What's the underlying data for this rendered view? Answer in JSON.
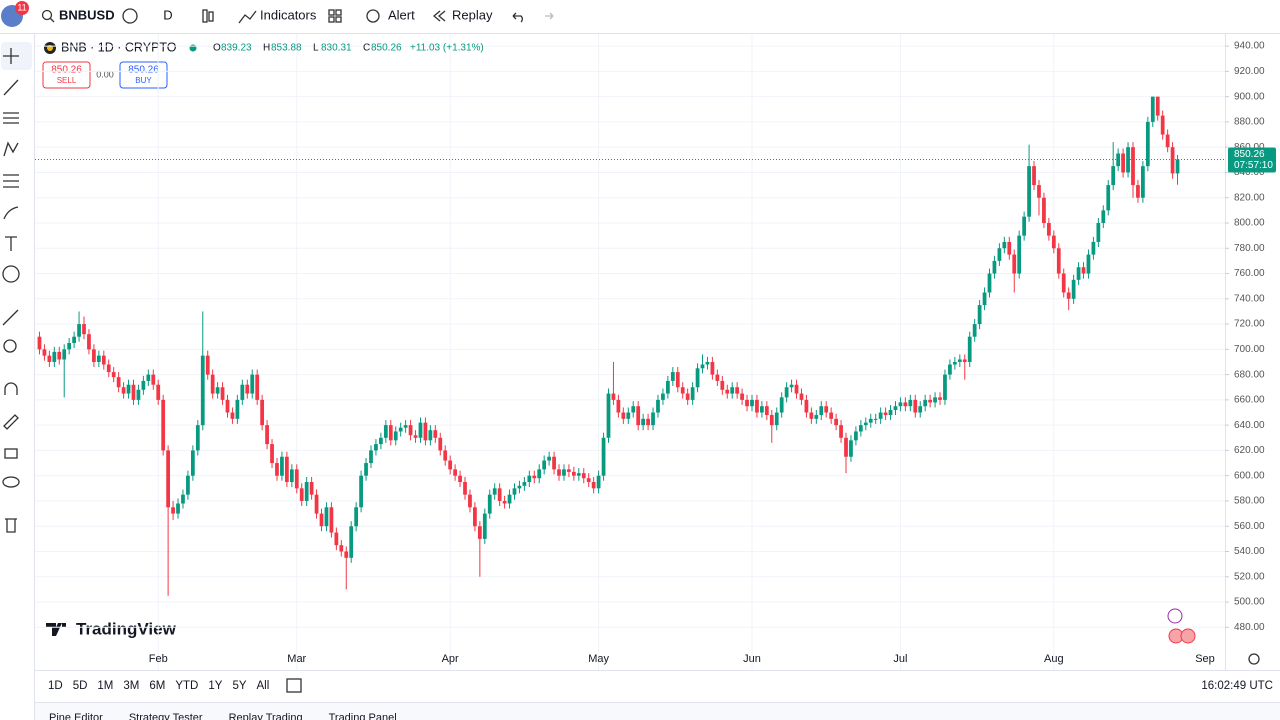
{
  "toolbar": {
    "badge": "11",
    "symbol": "BNBUSD",
    "interval": "D",
    "indicators": "Indicators",
    "alert": "Alert",
    "replay": "Replay"
  },
  "chart_data": {
    "type": "candlestick",
    "title": "BNB · 1D · CRYPTO",
    "ohlc_labels": [
      "O",
      "H",
      "L",
      "C"
    ],
    "change": "+11.03 (+1.31%)",
    "sell": "SELL",
    "buy": "BUY",
    "spread": "0.00",
    "countdown": "07:57:10",
    "watermark": "TradingView",
    "next_month_label": "Sep",
    "up_color": "#089981",
    "down_color": "#f23645",
    "grid": true,
    "ylim": [
      466,
      948
    ],
    "yticks": [
      {
        "value": 480,
        "label": "480.00"
      },
      {
        "value": 500,
        "label": "500.00"
      },
      {
        "value": 520,
        "label": "520.00"
      },
      {
        "value": 540,
        "label": "540.00"
      },
      {
        "value": 560,
        "label": "560.00"
      },
      {
        "value": 580,
        "label": "580.00"
      },
      {
        "value": 600,
        "label": "600.00"
      },
      {
        "value": 620,
        "label": "620.00"
      },
      {
        "value": 640,
        "label": "640.00"
      },
      {
        "value": 660,
        "label": "660.00"
      },
      {
        "value": 680,
        "label": "680.00"
      },
      {
        "value": 700,
        "label": "700.00"
      },
      {
        "value": 720,
        "label": "720.00"
      },
      {
        "value": 740,
        "label": "740.00"
      },
      {
        "value": 760,
        "label": "760.00"
      },
      {
        "value": 780,
        "label": "780.00"
      },
      {
        "value": 800,
        "label": "800.00"
      },
      {
        "value": 820,
        "label": "820.00"
      },
      {
        "value": 840,
        "label": "840.00"
      },
      {
        "value": 860,
        "label": "860.00"
      },
      {
        "value": 880,
        "label": "880.00"
      },
      {
        "value": 900,
        "label": "900.00"
      },
      {
        "value": 920,
        "label": "920.00"
      },
      {
        "value": 940,
        "label": "940.00"
      }
    ],
    "categories": [
      null,
      null,
      null,
      null,
      null,
      null,
      null,
      null,
      null,
      null,
      null,
      null,
      null,
      null,
      null,
      null,
      null,
      null,
      null,
      null,
      null,
      null,
      null,
      null,
      "Feb",
      null,
      null,
      null,
      null,
      null,
      null,
      null,
      null,
      null,
      null,
      null,
      null,
      null,
      null,
      null,
      null,
      null,
      null,
      null,
      null,
      null,
      null,
      null,
      null,
      null,
      null,
      null,
      "Mar",
      null,
      null,
      null,
      null,
      null,
      null,
      null,
      null,
      null,
      null,
      null,
      null,
      null,
      null,
      null,
      null,
      null,
      null,
      null,
      null,
      null,
      null,
      null,
      null,
      null,
      null,
      null,
      null,
      null,
      null,
      "Apr",
      null,
      null,
      null,
      null,
      null,
      null,
      null,
      null,
      null,
      null,
      null,
      null,
      null,
      null,
      null,
      null,
      null,
      null,
      null,
      null,
      null,
      null,
      null,
      null,
      null,
      null,
      null,
      null,
      null,
      "May",
      null,
      null,
      null,
      null,
      null,
      null,
      null,
      null,
      null,
      null,
      null,
      null,
      null,
      null,
      null,
      null,
      null,
      null,
      null,
      null,
      null,
      null,
      null,
      null,
      null,
      null,
      null,
      null,
      null,
      null,
      "Jun",
      null,
      null,
      null,
      null,
      null,
      null,
      null,
      null,
      null,
      null,
      null,
      null,
      null,
      null,
      null,
      null,
      null,
      null,
      null,
      null,
      null,
      null,
      null,
      null,
      null,
      null,
      null,
      null,
      null,
      "Jul",
      null,
      null,
      null,
      null,
      null,
      null,
      null,
      null,
      null,
      null,
      null,
      null,
      null,
      null,
      null,
      null,
      null,
      null,
      null,
      null,
      null,
      null,
      null,
      null,
      null,
      null,
      null,
      null,
      null,
      null,
      "Aug",
      null,
      null,
      null,
      null,
      null,
      null,
      null,
      null,
      null,
      null,
      null,
      null,
      null,
      null,
      null,
      null,
      null,
      null,
      null,
      null,
      null,
      null,
      null,
      null,
      null
    ],
    "open": [
      710,
      700,
      695,
      690,
      698,
      692,
      700,
      705,
      710,
      720,
      712,
      700,
      690,
      695,
      688,
      682,
      678,
      670,
      665,
      672,
      660,
      668,
      675,
      680,
      672,
      660,
      620,
      575,
      570,
      578,
      585,
      600,
      620,
      640,
      695,
      680,
      665,
      670,
      660,
      650,
      645,
      660,
      672,
      665,
      680,
      660,
      640,
      625,
      610,
      600,
      615,
      595,
      605,
      590,
      580,
      595,
      585,
      570,
      560,
      575,
      555,
      545,
      540,
      535,
      560,
      575,
      600,
      610,
      620,
      625,
      630,
      640,
      628,
      635,
      638,
      640,
      632,
      630,
      642,
      628,
      636,
      630,
      620,
      612,
      605,
      600,
      595,
      585,
      575,
      560,
      550,
      570,
      585,
      590,
      580,
      578,
      585,
      590,
      592,
      595,
      600,
      598,
      605,
      612,
      615,
      605,
      600,
      605,
      603,
      600,
      602,
      598,
      595,
      590,
      600,
      630,
      665,
      660,
      650,
      645,
      650,
      655,
      640,
      645,
      640,
      650,
      660,
      665,
      675,
      682,
      670,
      665,
      660,
      670,
      685,
      688,
      690,
      680,
      675,
      668,
      665,
      670,
      665,
      660,
      655,
      660,
      650,
      655,
      648,
      640,
      650,
      662,
      670,
      672,
      665,
      660,
      650,
      645,
      648,
      655,
      650,
      645,
      640,
      630,
      615,
      628,
      635,
      640,
      642,
      645,
      645,
      650,
      648,
      652,
      655,
      658,
      655,
      660,
      650,
      655,
      660,
      658,
      662,
      660,
      680,
      688,
      690,
      692,
      690,
      710,
      720,
      735,
      745,
      760,
      770,
      780,
      785,
      775,
      760,
      790,
      805,
      845,
      830,
      820,
      800,
      790,
      780,
      760,
      745,
      740,
      755,
      765,
      760,
      775,
      785,
      800,
      810,
      830,
      845,
      855,
      840,
      860,
      830,
      820,
      845,
      880,
      900,
      885,
      870,
      860,
      839.23
    ],
    "high": [
      714,
      704,
      699,
      702,
      702,
      704,
      709,
      714,
      730,
      726,
      716,
      704,
      699,
      699,
      692,
      686,
      682,
      674,
      676,
      676,
      672,
      679,
      684,
      684,
      676,
      664,
      624,
      580,
      582,
      589,
      604,
      624,
      644,
      730,
      699,
      684,
      674,
      674,
      664,
      654,
      664,
      676,
      676,
      684,
      684,
      664,
      644,
      629,
      614,
      619,
      619,
      609,
      609,
      594,
      599,
      599,
      589,
      574,
      579,
      579,
      559,
      549,
      544,
      564,
      579,
      604,
      614,
      624,
      629,
      634,
      644,
      644,
      639,
      642,
      644,
      644,
      636,
      646,
      646,
      640,
      640,
      634,
      624,
      616,
      609,
      604,
      599,
      589,
      579,
      564,
      574,
      589,
      594,
      594,
      584,
      589,
      594,
      596,
      599,
      604,
      604,
      609,
      616,
      619,
      619,
      609,
      609,
      609,
      607,
      606,
      606,
      602,
      599,
      604,
      634,
      669,
      690,
      664,
      654,
      654,
      659,
      659,
      649,
      649,
      654,
      664,
      669,
      679,
      686,
      686,
      674,
      669,
      674,
      689,
      696,
      694,
      694,
      684,
      679,
      672,
      674,
      674,
      669,
      664,
      664,
      664,
      659,
      659,
      652,
      654,
      666,
      674,
      676,
      676,
      669,
      664,
      654,
      652,
      659,
      659,
      654,
      649,
      644,
      634,
      632,
      639,
      644,
      646,
      649,
      649,
      654,
      654,
      656,
      659,
      662,
      662,
      664,
      664,
      659,
      664,
      664,
      666,
      666,
      684,
      692,
      694,
      696,
      696,
      714,
      724,
      739,
      749,
      764,
      774,
      784,
      789,
      789,
      779,
      794,
      809,
      862,
      849,
      834,
      824,
      804,
      794,
      784,
      764,
      749,
      759,
      769,
      769,
      779,
      789,
      804,
      814,
      834,
      864,
      859,
      859,
      864,
      864,
      834,
      849,
      884,
      900,
      900,
      889,
      874,
      864,
      853.88
    ],
    "low": [
      696,
      691,
      686,
      686,
      688,
      662,
      696,
      701,
      706,
      708,
      696,
      686,
      686,
      684,
      678,
      674,
      666,
      661,
      661,
      656,
      656,
      664,
      671,
      668,
      656,
      616,
      505,
      565,
      566,
      574,
      581,
      596,
      616,
      636,
      676,
      661,
      661,
      656,
      646,
      641,
      641,
      656,
      661,
      661,
      656,
      636,
      621,
      606,
      596,
      596,
      591,
      591,
      586,
      576,
      576,
      581,
      566,
      556,
      556,
      551,
      541,
      536,
      510,
      531,
      556,
      571,
      596,
      606,
      616,
      621,
      626,
      624,
      624,
      631,
      634,
      628,
      626,
      626,
      624,
      624,
      626,
      616,
      608,
      601,
      596,
      591,
      581,
      571,
      556,
      520,
      546,
      566,
      581,
      576,
      574,
      574,
      581,
      586,
      588,
      591,
      594,
      594,
      601,
      608,
      601,
      596,
      596,
      599,
      596,
      596,
      594,
      591,
      586,
      586,
      596,
      626,
      656,
      646,
      641,
      641,
      646,
      636,
      636,
      636,
      636,
      646,
      656,
      661,
      671,
      666,
      661,
      656,
      656,
      666,
      681,
      684,
      676,
      671,
      664,
      661,
      661,
      661,
      656,
      651,
      651,
      646,
      646,
      644,
      626,
      636,
      646,
      658,
      666,
      661,
      656,
      646,
      641,
      641,
      644,
      646,
      641,
      636,
      626,
      602,
      611,
      624,
      631,
      636,
      638,
      641,
      641,
      644,
      644,
      648,
      651,
      651,
      651,
      646,
      646,
      651,
      654,
      654,
      656,
      656,
      676,
      684,
      686,
      676,
      686,
      706,
      716,
      731,
      741,
      756,
      766,
      776,
      771,
      745,
      756,
      786,
      801,
      826,
      806,
      796,
      786,
      776,
      756,
      741,
      731,
      736,
      751,
      756,
      756,
      771,
      781,
      796,
      806,
      826,
      841,
      836,
      836,
      820,
      816,
      816,
      841,
      876,
      881,
      866,
      856,
      835,
      830.31
    ],
    "close": [
      700,
      695,
      690,
      698,
      692,
      700,
      705,
      710,
      720,
      712,
      700,
      690,
      695,
      688,
      682,
      678,
      670,
      665,
      672,
      660,
      668,
      675,
      680,
      672,
      660,
      620,
      575,
      570,
      578,
      585,
      600,
      620,
      640,
      695,
      680,
      665,
      670,
      660,
      650,
      645,
      660,
      672,
      665,
      680,
      660,
      640,
      625,
      610,
      600,
      615,
      595,
      605,
      590,
      580,
      595,
      585,
      570,
      560,
      575,
      555,
      545,
      540,
      535,
      560,
      575,
      600,
      610,
      620,
      625,
      630,
      640,
      628,
      635,
      638,
      640,
      632,
      630,
      642,
      628,
      636,
      630,
      620,
      612,
      605,
      600,
      595,
      585,
      575,
      560,
      550,
      570,
      585,
      590,
      580,
      578,
      585,
      590,
      592,
      595,
      600,
      598,
      605,
      612,
      615,
      605,
      600,
      605,
      603,
      600,
      602,
      598,
      595,
      590,
      600,
      630,
      665,
      660,
      650,
      645,
      650,
      655,
      640,
      645,
      640,
      650,
      660,
      665,
      675,
      682,
      670,
      665,
      660,
      670,
      685,
      688,
      690,
      680,
      675,
      668,
      665,
      670,
      665,
      660,
      655,
      660,
      650,
      655,
      648,
      640,
      650,
      662,
      670,
      672,
      665,
      660,
      650,
      645,
      648,
      655,
      650,
      645,
      640,
      630,
      615,
      628,
      635,
      640,
      642,
      645,
      645,
      650,
      648,
      652,
      655,
      658,
      655,
      660,
      650,
      655,
      660,
      658,
      662,
      660,
      680,
      688,
      690,
      692,
      690,
      710,
      720,
      735,
      745,
      760,
      770,
      780,
      785,
      775,
      760,
      790,
      805,
      845,
      830,
      820,
      800,
      790,
      780,
      760,
      745,
      740,
      755,
      765,
      760,
      775,
      785,
      800,
      810,
      830,
      845,
      855,
      840,
      860,
      830,
      820,
      845,
      880,
      900,
      885,
      870,
      860,
      839.23,
      850.26
    ]
  },
  "bottom_bar": {
    "ranges": [
      "1D",
      "5D",
      "1M",
      "3M",
      "6M",
      "YTD",
      "1Y",
      "5Y",
      "All"
    ],
    "clock": "16:02:49 UTC"
  },
  "tabs": [
    "Pine Editor",
    "Strategy Tester",
    "Replay Trading",
    "Trading Panel"
  ]
}
